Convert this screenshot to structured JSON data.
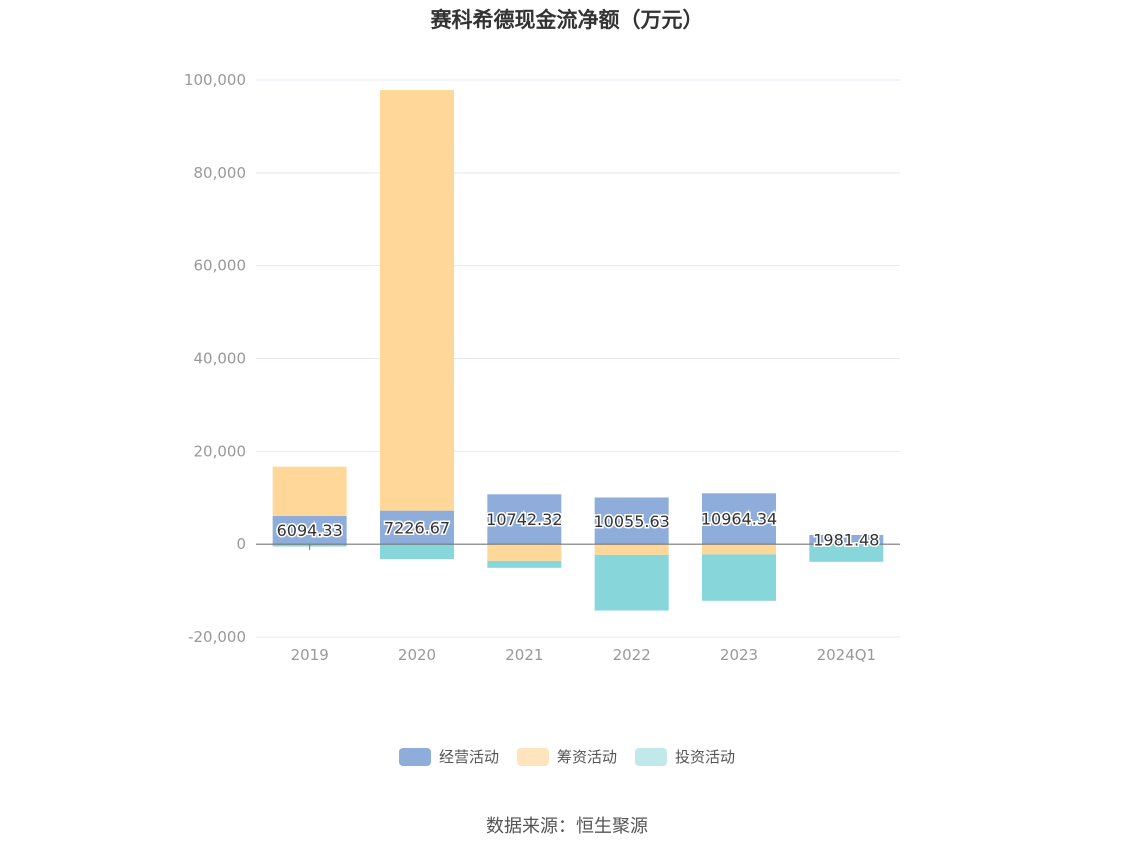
{
  "chart_data": {
    "type": "bar",
    "stacked": true,
    "title": "赛科希德现金流净额（万元）",
    "categories": [
      "2019",
      "2020",
      "2021",
      "2022",
      "2023",
      "2024Q1"
    ],
    "series": [
      {
        "name": "经营活动",
        "color": "#8EADDB",
        "values": [
          6094.33,
          7226.67,
          10742.32,
          10055.63,
          10964.34,
          1981.48
        ]
      },
      {
        "name": "筹资活动",
        "color": "#FFD899",
        "values": [
          10600,
          90600,
          -3600,
          -2300,
          -2200,
          -100
        ]
      },
      {
        "name": "投资活动",
        "color": "#87D7DA",
        "values": [
          -500,
          -3200,
          -1500,
          -12000,
          -10000,
          -3700
        ]
      }
    ],
    "data_labels": [
      "6094.33",
      "7226.67",
      "10742.32",
      "10055.63",
      "10964.34",
      "1981.48"
    ],
    "y_ticks": [
      "100,000",
      "80,000",
      "60,000",
      "40,000",
      "20,000",
      "0",
      "-20,000"
    ],
    "ylim": [
      -20000,
      100000
    ],
    "grid": true,
    "legend_position": "bottom",
    "legend_colors": [
      "#8EADDB",
      "#FFE4BD",
      "#C1E9EB"
    ]
  },
  "source": "数据来源：恒生聚源"
}
